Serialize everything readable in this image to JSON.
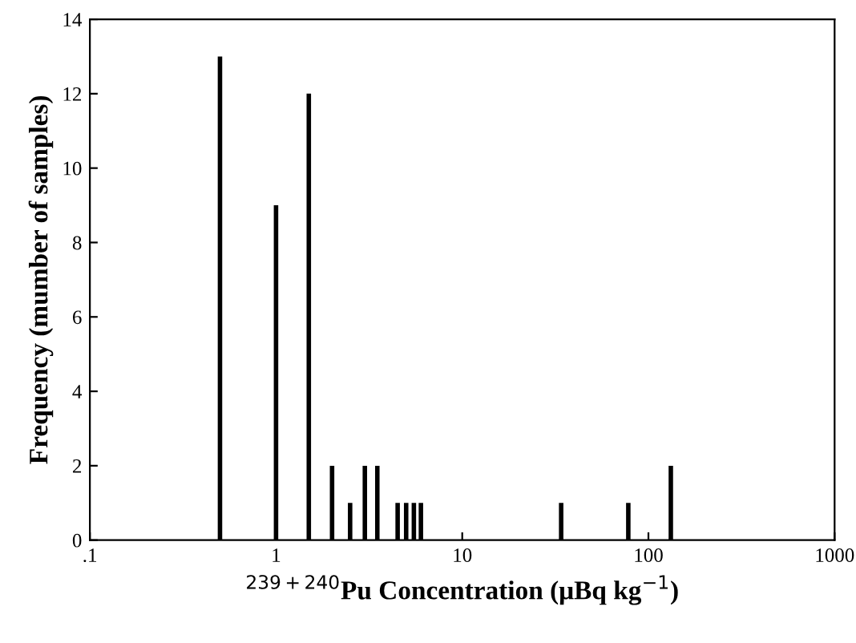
{
  "chart_data": {
    "type": "bar",
    "xlabel": "$^{239+240}$Pu Concentration (μBq kg$^{−1}$)",
    "ylabel": "Frequency (mumber of samples)",
    "x": [
      0.5,
      1,
      1.5,
      2,
      2.5,
      3,
      3.5,
      4.5,
      5,
      5.5,
      6,
      34,
      78,
      132
    ],
    "values": [
      13,
      9,
      12,
      2,
      1,
      2,
      2,
      1,
      1,
      1,
      1,
      1,
      1,
      2
    ],
    "color": "#000000",
    "log": "x",
    "xlim": [
      0.1,
      1000
    ],
    "ylim": [
      0,
      14
    ],
    "xticks": [
      {
        "value": 0.1,
        "label": ".1"
      },
      1,
      10,
      100,
      1000
    ],
    "yticks": [
      0,
      2,
      4,
      6,
      8,
      10,
      12,
      14
    ],
    "grid": false
  }
}
